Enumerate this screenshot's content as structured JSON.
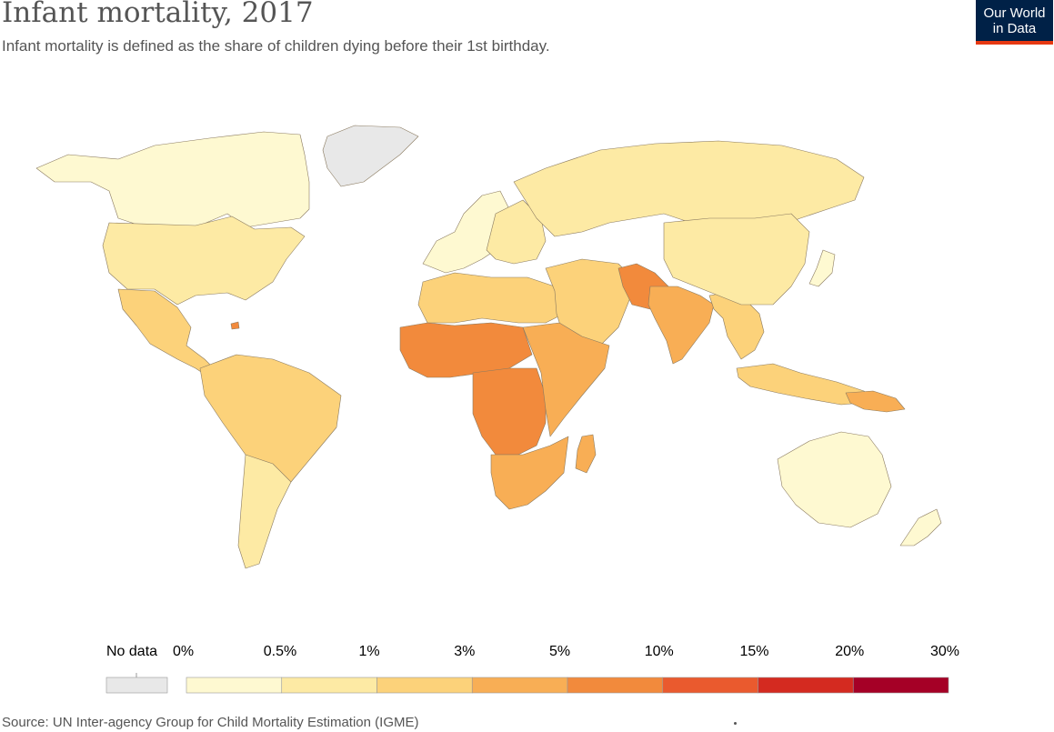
{
  "header": {
    "title": "Infant mortality, 2017",
    "subtitle": "Infant mortality is defined as the share of children dying before their 1st birthday."
  },
  "logo": {
    "line1": "Our World",
    "line2": "in Data",
    "color": "#002147",
    "accent": "#e63912"
  },
  "legend": {
    "no_data_label": "No data",
    "no_data_color": "#e8e8e8",
    "bins": [
      {
        "from": "0%",
        "to": "0.5%",
        "color": "#fef9d1"
      },
      {
        "from": "0.5%",
        "to": "1%",
        "color": "#fdeaa4"
      },
      {
        "from": "1%",
        "to": "3%",
        "color": "#fcd27a"
      },
      {
        "from": "3%",
        "to": "5%",
        "color": "#f8ae55"
      },
      {
        "from": "5%",
        "to": "10%",
        "color": "#f28a3c"
      },
      {
        "from": "10%",
        "to": "15%",
        "color": "#ea5a2e"
      },
      {
        "from": "15%",
        "to": "20%",
        "color": "#d42a20"
      },
      {
        "from": "20%",
        "to": "30%",
        "color": "#a50026"
      }
    ],
    "tick_labels": [
      "0%",
      "0.5%",
      "1%",
      "3%",
      "5%",
      "10%",
      "15%",
      "20%",
      "30%"
    ]
  },
  "regions": [
    {
      "name": "Canada & Alaska",
      "bin": 0
    },
    {
      "name": "United States",
      "bin": 1
    },
    {
      "name": "Mexico & Central America",
      "bin": 2
    },
    {
      "name": "Greenland",
      "bin": -1
    },
    {
      "name": "Western Europe",
      "bin": 0
    },
    {
      "name": "Eastern Europe",
      "bin": 1
    },
    {
      "name": "Russia",
      "bin": 1
    },
    {
      "name": "North Africa",
      "bin": 2
    },
    {
      "name": "Middle East",
      "bin": 2
    },
    {
      "name": "Sahel & West Africa",
      "bin": 4
    },
    {
      "name": "Central Africa",
      "bin": 4
    },
    {
      "name": "East Africa",
      "bin": 3
    },
    {
      "name": "Southern Africa",
      "bin": 3
    },
    {
      "name": "Madagascar",
      "bin": 3
    },
    {
      "name": "Pakistan & Afghanistan",
      "bin": 4
    },
    {
      "name": "India",
      "bin": 3
    },
    {
      "name": "Southeast Asia",
      "bin": 2
    },
    {
      "name": "China & Mongolia",
      "bin": 1
    },
    {
      "name": "Japan",
      "bin": 0
    },
    {
      "name": "Indonesia",
      "bin": 2
    },
    {
      "name": "Papua New Guinea",
      "bin": 3
    },
    {
      "name": "Australia",
      "bin": 0
    },
    {
      "name": "New Zealand",
      "bin": 0
    },
    {
      "name": "South America",
      "bin": 2
    },
    {
      "name": "Southern Cone",
      "bin": 1
    },
    {
      "name": "Haiti",
      "bin": 4
    }
  ],
  "footer": {
    "source": "Source: UN Inter-agency Group for Child Mortality Estimation (IGME)"
  }
}
